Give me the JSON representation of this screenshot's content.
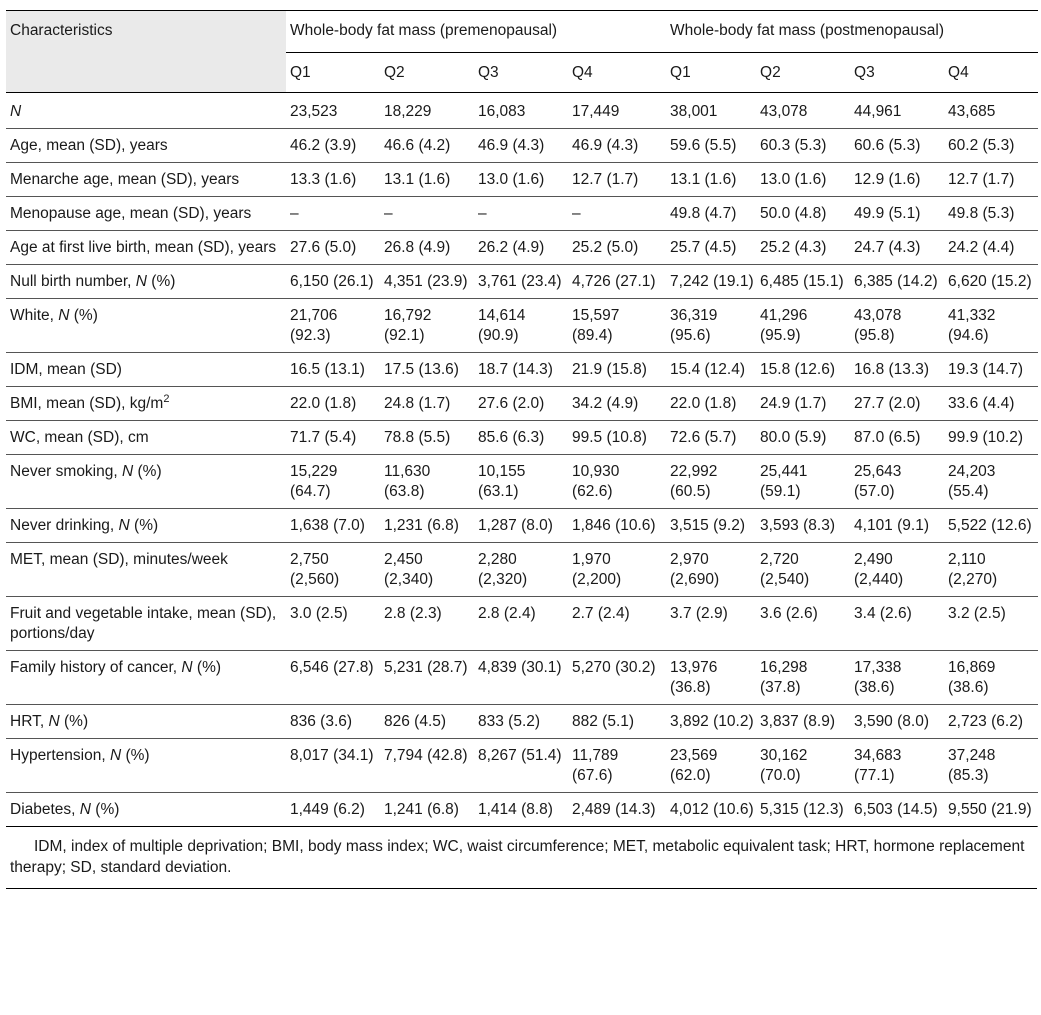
{
  "header": {
    "characteristics": "Characteristics",
    "group_pre": "Whole-body fat mass (premenopausal)",
    "group_post": "Whole-body fat mass (postmenopausal)",
    "quartiles": [
      "Q1",
      "Q2",
      "Q3",
      "Q4",
      "Q1",
      "Q2",
      "Q3",
      "Q4"
    ]
  },
  "rows": [
    {
      "label": "N",
      "label_italic": true,
      "cells": [
        "23,523",
        "18,229",
        "16,083",
        "17,449",
        "38,001",
        "43,078",
        "44,961",
        "43,685"
      ]
    },
    {
      "label": "Age, mean (SD), years",
      "cells": [
        "46.2 (3.9)",
        "46.6 (4.2)",
        "46.9 (4.3)",
        "46.9 (4.3)",
        "59.6 (5.5)",
        "60.3 (5.3)",
        "60.6 (5.3)",
        "60.2 (5.3)"
      ]
    },
    {
      "label": "Menarche age, mean (SD), years",
      "cells": [
        "13.3 (1.6)",
        "13.1 (1.6)",
        "13.0 (1.6)",
        "12.7 (1.7)",
        "13.1 (1.6)",
        "13.0 (1.6)",
        "12.9 (1.6)",
        "12.7 (1.7)"
      ]
    },
    {
      "label": "Menopause age, mean (SD), years",
      "cells": [
        "–",
        "–",
        "–",
        "–",
        "49.8 (4.7)",
        "50.0 (4.8)",
        "49.9 (5.1)",
        "49.8 (5.3)"
      ]
    },
    {
      "label": "Age at first live birth, mean (SD), years",
      "cells": [
        "27.6 (5.0)",
        "26.8 (4.9)",
        "26.2 (4.9)",
        "25.2 (5.0)",
        "25.7 (4.5)",
        "25.2 (4.3)",
        "24.7 (4.3)",
        "24.2 (4.4)"
      ]
    },
    {
      "label": "Null birth number, ",
      "label_suffix": "N",
      "label_tail": " (%)",
      "cells": [
        "6,150 (26.1)",
        "4,351 (23.9)",
        "3,761 (23.4)",
        "4,726 (27.1)",
        "7,242 (19.1)",
        "6,485 (15.1)",
        "6,385 (14.2)",
        "6,620 (15.2)"
      ]
    },
    {
      "label": "White, ",
      "label_suffix": "N",
      "label_tail": " (%)",
      "cells": [
        "21,706 (92.3)",
        "16,792 (92.1)",
        "14,614 (90.9)",
        "15,597 (89.4)",
        "36,319 (95.6)",
        "41,296 (95.9)",
        "43,078 (95.8)",
        "41,332 (94.6)"
      ]
    },
    {
      "label": "IDM, mean (SD)",
      "cells": [
        "16.5 (13.1)",
        "17.5 (13.6)",
        "18.7 (14.3)",
        "21.9 (15.8)",
        "15.4 (12.4)",
        "15.8 (12.6)",
        "16.8 (13.3)",
        "19.3 (14.7)"
      ]
    },
    {
      "label": "BMI, mean (SD), kg/m",
      "label_sup": "2",
      "cells": [
        "22.0 (1.8)",
        "24.8 (1.7)",
        "27.6 (2.0)",
        "34.2 (4.9)",
        "22.0 (1.8)",
        "24.9 (1.7)",
        "27.7 (2.0)",
        "33.6 (4.4)"
      ]
    },
    {
      "label": "WC, mean (SD), cm",
      "cells": [
        "71.7 (5.4)",
        "78.8 (5.5)",
        "85.6 (6.3)",
        "99.5 (10.8)",
        "72.6 (5.7)",
        "80.0 (5.9)",
        "87.0 (6.5)",
        "99.9 (10.2)"
      ]
    },
    {
      "label": "Never smoking, ",
      "label_suffix": "N",
      "label_tail": " (%)",
      "cells": [
        "15,229 (64.7)",
        "11,630 (63.8)",
        "10,155 (63.1)",
        "10,930 (62.6)",
        "22,992 (60.5)",
        "25,441 (59.1)",
        "25,643 (57.0)",
        "24,203 (55.4)"
      ]
    },
    {
      "label": "Never drinking, ",
      "label_suffix": "N",
      "label_tail": " (%)",
      "cells": [
        "1,638 (7.0)",
        "1,231 (6.8)",
        "1,287 (8.0)",
        "1,846 (10.6)",
        "3,515 (9.2)",
        "3,593 (8.3)",
        "4,101 (9.1)",
        "5,522 (12.6)"
      ]
    },
    {
      "label": "MET, mean (SD), minutes/week",
      "cells": [
        "2,750 (2,560)",
        "2,450 (2,340)",
        "2,280 (2,320)",
        "1,970 (2,200)",
        "2,970 (2,690)",
        "2,720 (2,540)",
        "2,490 (2,440)",
        "2,110 (2,270)"
      ]
    },
    {
      "label": "Fruit and vegetable intake, mean (SD), portions/day",
      "cells": [
        "3.0 (2.5)",
        "2.8 (2.3)",
        "2.8 (2.4)",
        "2.7 (2.4)",
        "3.7 (2.9)",
        "3.6 (2.6)",
        "3.4 (2.6)",
        "3.2 (2.5)"
      ]
    },
    {
      "label": "Family history of cancer, ",
      "label_suffix": "N",
      "label_tail": " (%)",
      "cells": [
        "6,546 (27.8)",
        "5,231 (28.7)",
        "4,839 (30.1)",
        "5,270 (30.2)",
        "13,976 (36.8)",
        "16,298 (37.8)",
        "17,338 (38.6)",
        "16,869 (38.6)"
      ]
    },
    {
      "label": "HRT, ",
      "label_suffix": "N",
      "label_tail": " (%)",
      "cells": [
        "836 (3.6)",
        "826 (4.5)",
        "833 (5.2)",
        "882 (5.1)",
        "3,892 (10.2)",
        "3,837 (8.9)",
        "3,590 (8.0)",
        "2,723 (6.2)"
      ]
    },
    {
      "label": "Hypertension, ",
      "label_suffix": "N",
      "label_tail": " (%)",
      "cells": [
        "8,017 (34.1)",
        "7,794 (42.8)",
        "8,267 (51.4)",
        "11,789 (67.6)",
        "23,569 (62.0)",
        "30,162 (70.0)",
        "34,683 (77.1)",
        "37,248 (85.3)"
      ]
    },
    {
      "label": "Diabetes, ",
      "label_suffix": "N",
      "label_tail": " (%)",
      "cells": [
        "1,449 (6.2)",
        "1,241 (6.8)",
        "1,414 (8.8)",
        "2,489 (14.3)",
        "4,012 (10.6)",
        "5,315 (12.3)",
        "6,503 (14.5)",
        "9,550 (21.9)"
      ]
    }
  ],
  "footnote": "IDM, index of multiple deprivation; BMI, body mass index; WC, waist circumference; MET, metabolic equivalent task; HRT, hormone replacement therapy; SD, standard deviation."
}
